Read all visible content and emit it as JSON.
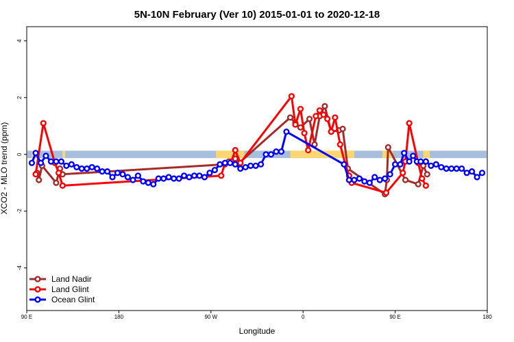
{
  "chart_data": {
    "type": "line",
    "title": "5N-10N February (Ver 10)   2015-01-01 to 2020-12-18",
    "xlabel": "Longitude",
    "ylabel": "XCO2 - MLO trend (ppm)",
    "xlim": [
      0,
      360
    ],
    "ylim": [
      -5.5,
      4.5
    ],
    "x_ticks": [
      {
        "value": 0,
        "label": "90 E"
      },
      {
        "value": 72,
        "label": "180"
      },
      {
        "value": 144,
        "label": "90 W"
      },
      {
        "value": 216,
        "label": "0"
      },
      {
        "value": 288,
        "label": "90 E"
      },
      {
        "value": 360,
        "label": "180"
      }
    ],
    "y_ticks": [
      {
        "value": -4,
        "label": "-4"
      },
      {
        "value": -2,
        "label": "-2"
      },
      {
        "value": 0,
        "label": "0"
      },
      {
        "value": 2,
        "label": "2"
      },
      {
        "value": 4,
        "label": "4"
      }
    ],
    "grid": false,
    "legend": {
      "placement": "bottom-left"
    },
    "band": {
      "color": "#a7bfdc",
      "land_color": "#fcd771",
      "ymin": -0.13,
      "ymax": 0.13,
      "land_regions": [
        [
          4,
          6
        ],
        [
          28,
          30
        ],
        [
          148,
          170
        ],
        [
          206,
          256
        ],
        [
          278,
          286
        ],
        [
          310,
          315
        ]
      ]
    },
    "series": [
      {
        "name": "Land Nadir",
        "color": "#a52a2a",
        "points": [
          [
            8,
            -0.65
          ],
          [
            9.5,
            -0.9
          ],
          [
            12,
            -0.4
          ],
          [
            23,
            -1.0
          ],
          [
            26,
            -0.5
          ],
          [
            28,
            -0.7
          ],
          [
            155,
            -0.35
          ],
          [
            158,
            -0.25
          ],
          [
            163,
            -0.15
          ],
          [
            166,
            -0.3
          ],
          [
            206,
            1.3
          ],
          [
            210,
            1.1
          ],
          [
            214,
            0.95
          ],
          [
            221,
            1.25
          ],
          [
            225,
            0.35
          ],
          [
            229,
            1.35
          ],
          [
            233,
            1.7
          ],
          [
            238,
            0.8
          ],
          [
            244,
            0.85
          ],
          [
            247,
            0.9
          ],
          [
            251,
            -0.5
          ],
          [
            280,
            -1.4
          ],
          [
            281.5,
            -0.9
          ],
          [
            282.5,
            0.25
          ],
          [
            296,
            -0.9
          ],
          [
            306,
            -1.05
          ],
          [
            310,
            -0.4
          ],
          [
            313,
            -0.7
          ]
        ]
      },
      {
        "name": "Land Glint",
        "color": "#ff0000",
        "points": [
          [
            7,
            -0.7
          ],
          [
            13,
            1.1
          ],
          [
            22,
            -0.3
          ],
          [
            25,
            -0.65
          ],
          [
            28,
            -1.1
          ],
          [
            152,
            -0.75
          ],
          [
            155,
            -0.3
          ],
          [
            160,
            -0.25
          ],
          [
            163,
            0.15
          ],
          [
            167,
            -0.3
          ],
          [
            207,
            2.05
          ],
          [
            210,
            1.05
          ],
          [
            214,
            1.6
          ],
          [
            217,
            0.75
          ],
          [
            220,
            0.15
          ],
          [
            226,
            1.35
          ],
          [
            229,
            1.55
          ],
          [
            232,
            1.4
          ],
          [
            235,
            1.25
          ],
          [
            238,
            0.8
          ],
          [
            241,
            1.3
          ],
          [
            245,
            0.35
          ],
          [
            249,
            -0.35
          ],
          [
            252,
            -0.75
          ],
          [
            254,
            -1.0
          ],
          [
            281,
            -1.35
          ],
          [
            294,
            -0.65
          ],
          [
            296,
            -0.25
          ],
          [
            299,
            1.1
          ],
          [
            306,
            -0.3
          ],
          [
            309,
            -0.85
          ],
          [
            312,
            -1.1
          ]
        ]
      },
      {
        "name": "Ocean Glint",
        "color": "#0000ff",
        "points": [
          [
            4,
            -0.3
          ],
          [
            7,
            0.05
          ],
          [
            11,
            -0.3
          ],
          [
            15,
            -0.05
          ],
          [
            19,
            -0.25
          ],
          [
            23,
            -0.25
          ],
          [
            27,
            -0.25
          ],
          [
            31,
            -0.4
          ],
          [
            35,
            -0.35
          ],
          [
            39,
            -0.45
          ],
          [
            43,
            -0.5
          ],
          [
            47,
            -0.5
          ],
          [
            51,
            -0.45
          ],
          [
            55,
            -0.5
          ],
          [
            59,
            -0.6
          ],
          [
            63,
            -0.6
          ],
          [
            67,
            -0.8
          ],
          [
            71,
            -0.65
          ],
          [
            75,
            -0.7
          ],
          [
            79,
            -0.8
          ],
          [
            83,
            -0.9
          ],
          [
            87,
            -0.75
          ],
          [
            91,
            -0.95
          ],
          [
            95,
            -1.0
          ],
          [
            99,
            -1.05
          ],
          [
            103,
            -0.85
          ],
          [
            107,
            -0.85
          ],
          [
            111,
            -0.8
          ],
          [
            115,
            -0.85
          ],
          [
            119,
            -0.85
          ],
          [
            123,
            -0.75
          ],
          [
            127,
            -0.8
          ],
          [
            131,
            -0.75
          ],
          [
            135,
            -0.75
          ],
          [
            139,
            -0.8
          ],
          [
            143,
            -0.65
          ],
          [
            147,
            -0.55
          ],
          [
            151,
            -0.35
          ],
          [
            155,
            -0.3
          ],
          [
            159,
            -0.3
          ],
          [
            163,
            -0.35
          ],
          [
            167,
            -0.5
          ],
          [
            171,
            -0.45
          ],
          [
            175,
            -0.4
          ],
          [
            179,
            -0.4
          ],
          [
            183,
            -0.35
          ],
          [
            187,
            0.0
          ],
          [
            191,
            0.0
          ],
          [
            195,
            0.1
          ],
          [
            199,
            0.1
          ],
          [
            203,
            0.8
          ],
          [
            248,
            -0.35
          ],
          [
            252,
            -0.9
          ],
          [
            256,
            -0.9
          ],
          [
            260,
            -0.85
          ],
          [
            264,
            -0.95
          ],
          [
            268,
            -1.0
          ],
          [
            272,
            -0.8
          ],
          [
            276,
            -0.9
          ],
          [
            280,
            -0.85
          ],
          [
            284,
            -0.7
          ],
          [
            288,
            -0.35
          ],
          [
            292,
            -0.35
          ],
          [
            295,
            0.05
          ],
          [
            299,
            -0.25
          ],
          [
            302,
            -0.05
          ],
          [
            305,
            -0.25
          ],
          [
            308,
            -0.25
          ],
          [
            312,
            -0.25
          ],
          [
            316,
            -0.4
          ],
          [
            320,
            -0.35
          ],
          [
            324,
            -0.45
          ],
          [
            328,
            -0.5
          ],
          [
            332,
            -0.5
          ],
          [
            336,
            -0.5
          ],
          [
            340,
            -0.5
          ],
          [
            344,
            -0.65
          ],
          [
            348,
            -0.6
          ],
          [
            352,
            -0.8
          ],
          [
            356,
            -0.65
          ]
        ]
      }
    ]
  }
}
